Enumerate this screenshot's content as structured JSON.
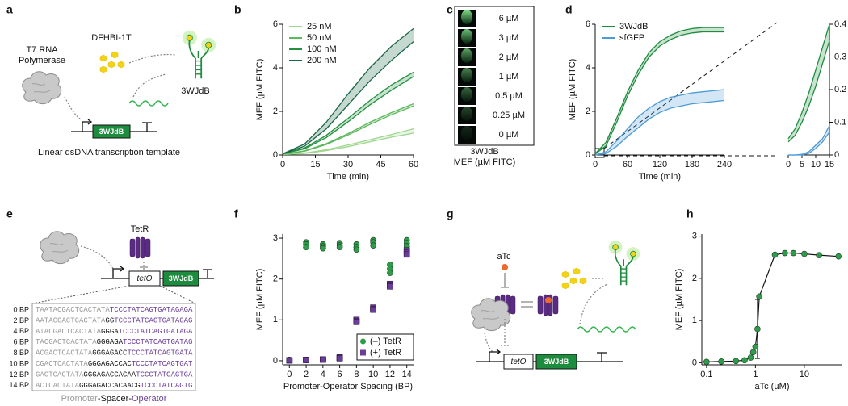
{
  "panel_a": {
    "label": "a",
    "polymerase": [
      "T7 RNA",
      "Polymerase"
    ],
    "dye": "DFHBI-1T",
    "aptamer": "3WJdB",
    "gene": "3WJdB",
    "caption": "Linear dsDNA transcription template"
  },
  "panel_c": {
    "label": "c",
    "concentrations": [
      "6 µM",
      "3 µM",
      "2 µM",
      "1 µM",
      "0.5 µM",
      "0.25 µM",
      "0 µM"
    ],
    "caption": [
      "3WJdB",
      "MEF (µM FITC)"
    ]
  },
  "panel_e": {
    "label": "e",
    "repressor": "TetR",
    "operator": "tetO",
    "gene": "3WJdB",
    "sequences": [
      {
        "label": "0 BP",
        "promoter": "TAATACGACTCACTATA",
        "operator": "TCCCTATCAGTGATAGAGA"
      },
      {
        "label": "2 BP",
        "promoter": "AATACGACTCACTATA",
        "spacer": "GG",
        "operator": "TCCCTATCAGTGATAGAG"
      },
      {
        "label": "4 BP",
        "promoter": "ATACGACTCACTATA",
        "spacer": "GGGA",
        "operator": "TCCCTATCAGTGATAGA"
      },
      {
        "label": "6 BP",
        "promoter": "TACGACTCACTATA",
        "spacer": "GGGAGA",
        "operator": "TCCCTATCAGTGATAG"
      },
      {
        "label": "8 BP",
        "promoter": "ACGACTCACTATA",
        "spacer": "GGGAGACC",
        "operator": "TCCCTATCAGTGATA"
      },
      {
        "label": "10 BP",
        "promoter": "CGACTCACTATA",
        "spacer": "GGGAGACCAC",
        "operator": "TCCCTATCAGTGAT"
      },
      {
        "label": "12 BP",
        "promoter": "GACTCACTATA",
        "spacer": "GGGAGACCACAA",
        "operator": "TCCCTATCAGTGA"
      },
      {
        "label": "14 BP",
        "promoter": "ACTCACTATA",
        "spacer": "GGGAGACCACAACG",
        "operator": "TCCCTATCAGTG"
      }
    ],
    "caption": [
      "Promoter",
      "-Spacer-",
      "Operator"
    ]
  },
  "panel_g": {
    "label": "g",
    "inducer": "aTc",
    "operator": "tetO",
    "gene": "3WJdB"
  },
  "chart_data": [
    {
      "type": "line",
      "panel_label": "b",
      "x": [
        0,
        10,
        20,
        30,
        40,
        50,
        60
      ],
      "xlim": [
        0,
        60
      ],
      "xticks": [
        0,
        15,
        30,
        45,
        60
      ],
      "ylim": [
        0,
        6
      ],
      "yticks": [
        0,
        2,
        4,
        6
      ],
      "xlabel": "Time (min)",
      "ylabel": "MEF (µM FITC)",
      "legend": "upper left",
      "series": [
        {
          "name": "25 nM",
          "color": "#9fd68f",
          "lower": [
            0.02,
            0.07,
            0.2,
            0.38,
            0.6,
            0.82,
            1.0
          ],
          "upper": [
            0.02,
            0.09,
            0.24,
            0.46,
            0.7,
            0.94,
            1.2
          ]
        },
        {
          "name": "50 nM",
          "color": "#5cb85a",
          "lower": [
            0.03,
            0.17,
            0.48,
            0.92,
            1.4,
            1.85,
            2.25
          ],
          "upper": [
            0.03,
            0.19,
            0.52,
            0.98,
            1.5,
            1.95,
            2.35
          ]
        },
        {
          "name": "100 nM",
          "color": "#24913f",
          "lower": [
            0.05,
            0.28,
            0.8,
            1.52,
            2.3,
            2.98,
            3.6
          ],
          "upper": [
            0.05,
            0.32,
            0.9,
            1.68,
            2.5,
            3.22,
            3.8
          ]
        },
        {
          "name": "200 nM",
          "color": "#1a6647",
          "lower": [
            0.05,
            0.4,
            1.2,
            2.3,
            3.4,
            4.35,
            5.2
          ],
          "upper": [
            0.05,
            0.5,
            1.5,
            2.8,
            4.0,
            5.0,
            5.8
          ]
        }
      ]
    },
    {
      "type": "line",
      "panel_label": "d",
      "x": [
        0,
        20,
        40,
        60,
        80,
        100,
        120,
        140,
        160,
        180,
        200,
        220,
        240
      ],
      "xlim": [
        0,
        240
      ],
      "xticks": [
        0,
        60,
        120,
        180,
        240
      ],
      "ylim": [
        0,
        6
      ],
      "yticks": [
        0,
        2,
        4,
        6
      ],
      "xlabel": "Time (min)",
      "ylabel": "MEF (µM FITC)",
      "legend": "upper left",
      "series": [
        {
          "name": "3WJdB",
          "color": "#1e8c3e",
          "lower": [
            0.04,
            0.42,
            1.5,
            2.7,
            3.7,
            4.5,
            5.0,
            5.3,
            5.5,
            5.6,
            5.65,
            5.65,
            5.65
          ],
          "upper": [
            0.06,
            0.58,
            1.7,
            2.9,
            3.9,
            4.7,
            5.2,
            5.5,
            5.7,
            5.8,
            5.85,
            5.85,
            5.85
          ]
        },
        {
          "name": "sfGFP",
          "color": "#4c9bd6",
          "lower": [
            0,
            0.07,
            0.4,
            0.85,
            1.25,
            1.65,
            1.95,
            2.15,
            2.25,
            2.35,
            2.4,
            2.45,
            2.5
          ],
          "upper": [
            0,
            0.15,
            0.65,
            1.2,
            1.75,
            2.15,
            2.45,
            2.65,
            2.75,
            2.85,
            2.9,
            2.95,
            3.0
          ]
        }
      ]
    },
    {
      "type": "line",
      "x": [
        0,
        2.5,
        5,
        7.5,
        10,
        12.5,
        15
      ],
      "xlim": [
        0,
        15
      ],
      "xticks": [
        0,
        5,
        10,
        15
      ],
      "ylim": [
        0,
        0.4
      ],
      "yticks": [
        0,
        0.1,
        0.2,
        0.3,
        0.4
      ],
      "y_axis": "right",
      "series": [
        {
          "color": "#1e8c3e",
          "lower": [
            0.04,
            0.06,
            0.1,
            0.15,
            0.21,
            0.28,
            0.35
          ],
          "upper": [
            0.05,
            0.08,
            0.13,
            0.19,
            0.26,
            0.33,
            0.4
          ]
        },
        {
          "color": "#4c9bd6",
          "lower": [
            0,
            0,
            0,
            0.005,
            0.02,
            0.04,
            0.07
          ],
          "upper": [
            0,
            0,
            0.002,
            0.01,
            0.03,
            0.05,
            0.09
          ]
        }
      ]
    },
    {
      "type": "scatter",
      "panel_label": "f",
      "xlim": [
        -0.8,
        14.8
      ],
      "xticks": [
        0,
        2,
        4,
        6,
        8,
        10,
        12,
        14
      ],
      "ylim": [
        -0.1,
        3.1
      ],
      "yticks": [
        0,
        1,
        2,
        3
      ],
      "xlabel": "Promoter-Operator Spacing (BP)",
      "ylabel": "MEF (µM FITC)",
      "legend": "lower right",
      "series": [
        {
          "name": "(–) TetR",
          "color": "#2e9c4a",
          "marker": "circle",
          "x": [
            0,
            0,
            0,
            2,
            2,
            2,
            4,
            4,
            4,
            6,
            6,
            6,
            8,
            8,
            8,
            10,
            10,
            10,
            12,
            12,
            12,
            14,
            14,
            14
          ],
          "values": [
            0.02,
            0.02,
            0.02,
            2.9,
            2.85,
            2.78,
            2.85,
            2.8,
            2.75,
            2.88,
            2.82,
            2.78,
            2.85,
            2.78,
            2.72,
            2.95,
            2.9,
            2.82,
            2.35,
            2.25,
            2.15,
            2.95,
            2.88,
            2.8
          ]
        },
        {
          "name": "(+) TetR",
          "color": "#6a3d9a",
          "marker": "square",
          "x": [
            0,
            0,
            0,
            2,
            2,
            2,
            4,
            4,
            4,
            6,
            6,
            6,
            8,
            8,
            8,
            10,
            10,
            10,
            12,
            12,
            12,
            14,
            14,
            14
          ],
          "values": [
            0.01,
            0.01,
            0.01,
            0.02,
            0.02,
            0.02,
            0.03,
            0.03,
            0.03,
            0.08,
            0.07,
            0.06,
            1.0,
            0.97,
            0.95,
            1.3,
            1.27,
            1.25,
            1.88,
            1.85,
            1.82,
            2.7,
            2.65,
            2.6
          ]
        }
      ]
    },
    {
      "type": "scatter",
      "panel_label": "h",
      "log_x": true,
      "xlim": [
        0.08,
        60
      ],
      "xticks": [
        0.1,
        1,
        10
      ],
      "ylim": [
        -0.05,
        3.05
      ],
      "yticks": [
        0,
        1,
        2,
        3
      ],
      "xlabel": "aTc (µM)",
      "ylabel": "MEF (µM FITC)",
      "line_color": "#111111",
      "series": [
        {
          "color": "#2e9c4a",
          "marker": "circle",
          "connect": true,
          "x": [
            0.1,
            0.2,
            0.4,
            0.6,
            0.8,
            0.9,
            1.0,
            1.1,
            1.2,
            2.5,
            4,
            6,
            10,
            20,
            50
          ],
          "values": [
            0.02,
            0.03,
            0.04,
            0.06,
            0.12,
            0.25,
            0.38,
            0.8,
            1.57,
            2.56,
            2.6,
            2.6,
            2.58,
            2.55,
            2.52
          ],
          "errors": [
            null,
            null,
            null,
            null,
            null,
            null,
            null,
            0.7,
            null,
            null,
            null,
            null,
            null,
            null,
            null
          ]
        }
      ]
    }
  ]
}
